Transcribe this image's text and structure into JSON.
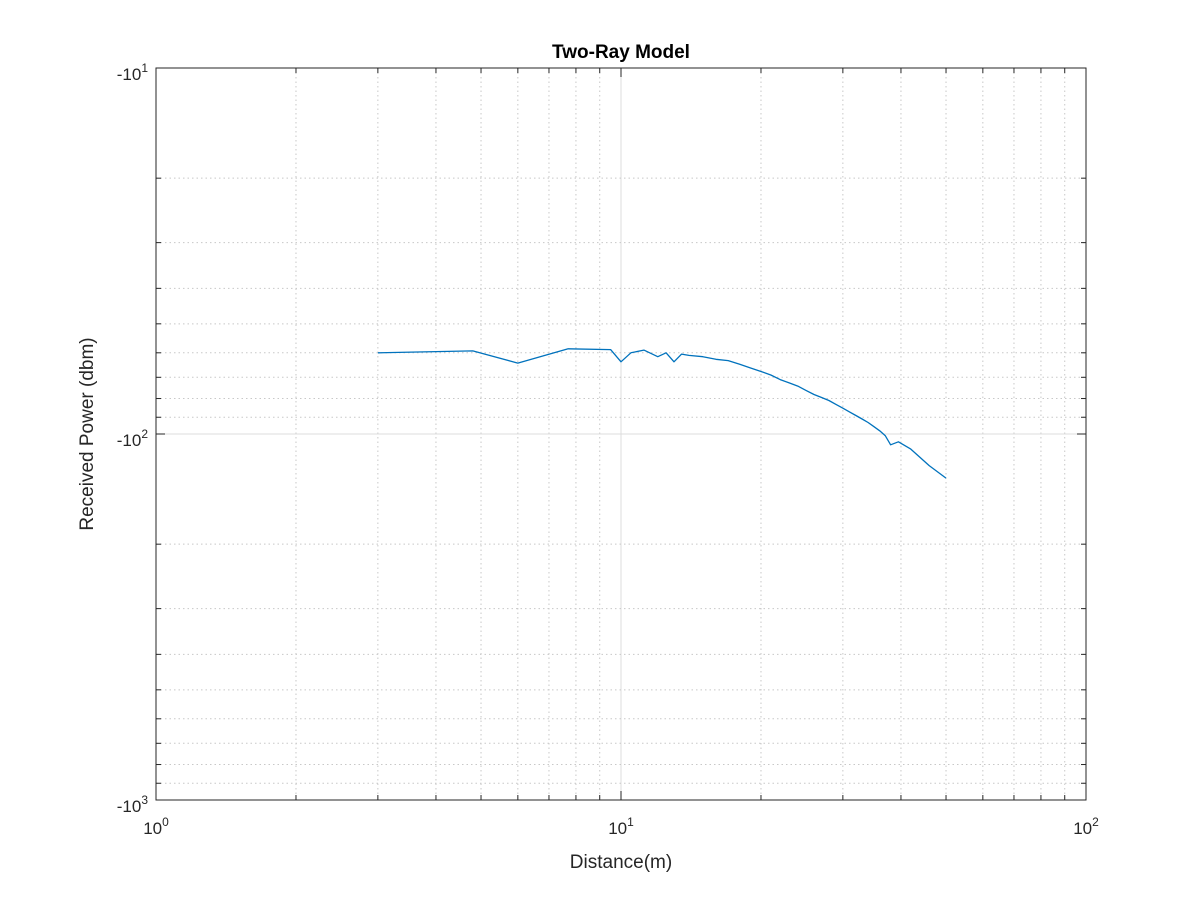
{
  "chart_data": {
    "type": "line",
    "title": "Two-Ray Model",
    "xlabel": "Distance(m)",
    "ylabel": "Received Power (dbm)",
    "x_scale": "log",
    "y_scale": "log (negative values, magnitude plotted)",
    "xlim": [
      1,
      100
    ],
    "ylim": [
      -1000,
      -10
    ],
    "grid": true,
    "minor_grid": true,
    "x_tick_labels": [
      {
        "base": "10",
        "exp": "0"
      },
      {
        "base": "10",
        "exp": "1"
      },
      {
        "base": "10",
        "exp": "2"
      }
    ],
    "y_tick_labels": [
      {
        "base": "-10",
        "exp": "1"
      },
      {
        "base": "-10",
        "exp": "2"
      },
      {
        "base": "-10",
        "exp": "3"
      }
    ],
    "series": [
      {
        "color": "#0072bd",
        "x": [
          3.0,
          4.8,
          6.0,
          7.7,
          9.5,
          10.0,
          10.5,
          11.2,
          12.0,
          12.5,
          13.0,
          13.5,
          14.0,
          15.0,
          16.0,
          17.0,
          18.0,
          19.0,
          20.0,
          21.0,
          22.0,
          23.0,
          24.0,
          25.0,
          26.0,
          27.0,
          28.0,
          29.0,
          30.0,
          31.0,
          32.0,
          33.0,
          34.0,
          35.0,
          36.0,
          37.0,
          38.0,
          39.5,
          42.0,
          46.0,
          50.0
        ],
        "y": [
          -60.0,
          -59.3,
          -64.0,
          -58.5,
          -58.8,
          -63.5,
          -60.0,
          -59.0,
          -61.5,
          -60.0,
          -63.5,
          -60.5,
          -61.0,
          -61.5,
          -62.5,
          -63.0,
          -64.5,
          -66.0,
          -67.5,
          -69.0,
          -71.0,
          -72.5,
          -74.0,
          -76.0,
          -78.0,
          -79.5,
          -81.0,
          -83.0,
          -85.0,
          -87.0,
          -89.0,
          -91.0,
          -93.0,
          -95.5,
          -98.0,
          -101.0,
          -107.0,
          -105.0,
          -110.0,
          -122.0,
          -132.0
        ]
      }
    ]
  }
}
